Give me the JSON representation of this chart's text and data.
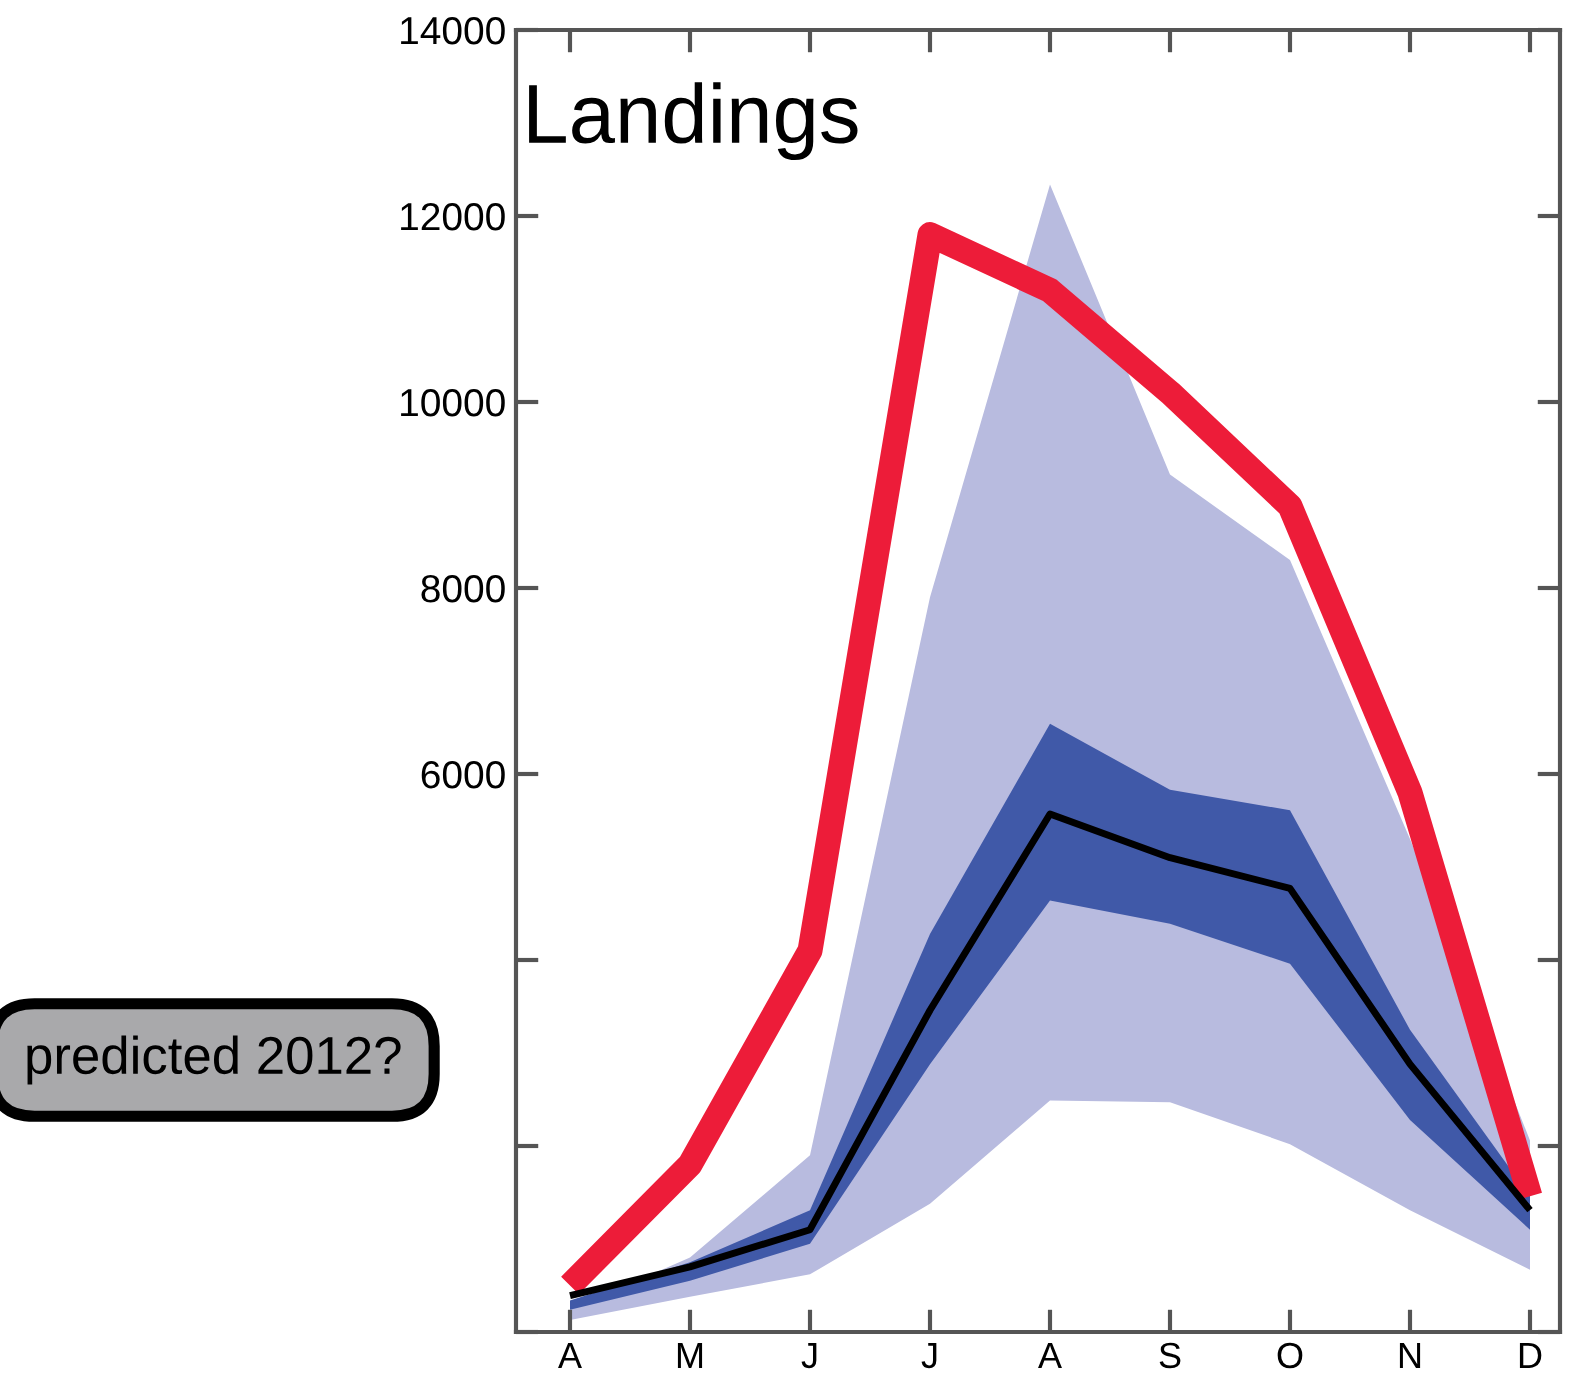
{
  "chart_data": {
    "type": "line",
    "title": "Landings",
    "categories": [
      "A",
      "M",
      "J",
      "J",
      "A",
      "S",
      "O",
      "N",
      "D"
    ],
    "series": [
      {
        "type": "area",
        "color": "#b8bbdf",
        "values": [
          null,
          null,
          null,
          null,
          null,
          null,
          null,
          null,
          null
        ],
        "lower": [
          130,
          380,
          620,
          1380,
          2490,
          2470,
          2020,
          1310,
          670
        ],
        "upper": [
          240,
          800,
          1900,
          7900,
          12340,
          9220,
          8300,
          5300,
          2060
        ]
      },
      {
        "type": "area",
        "color": "#4059a8",
        "values": [
          null,
          null,
          null,
          null,
          null,
          null,
          null,
          null,
          null
        ],
        "lower": [
          240,
          550,
          950,
          2880,
          4640,
          4390,
          3960,
          2280,
          1100
        ],
        "upper": [
          340,
          750,
          1310,
          4280,
          6540,
          5830,
          5610,
          3250,
          1460
        ]
      },
      {
        "color": "#000000",
        "values": [
          390,
          700,
          1100,
          3460,
          5570,
          5100,
          4770,
          2880,
          1310
        ]
      },
      {
        "color": "#ed1c39",
        "values": [
          500,
          1800,
          4100,
          11800,
          11200,
          10100,
          8880,
          5800,
          1460
        ]
      }
    ],
    "ylim": [
      0,
      14000
    ],
    "yticks": [
      {
        "value": 0,
        "label": null
      },
      {
        "value": 2000,
        "label": null
      },
      {
        "value": 4000,
        "label": null
      },
      6000,
      8000,
      10000,
      12000,
      14000
    ],
    "grid": false,
    "legend": false,
    "annotations": [
      "predicted 2012?"
    ]
  }
}
